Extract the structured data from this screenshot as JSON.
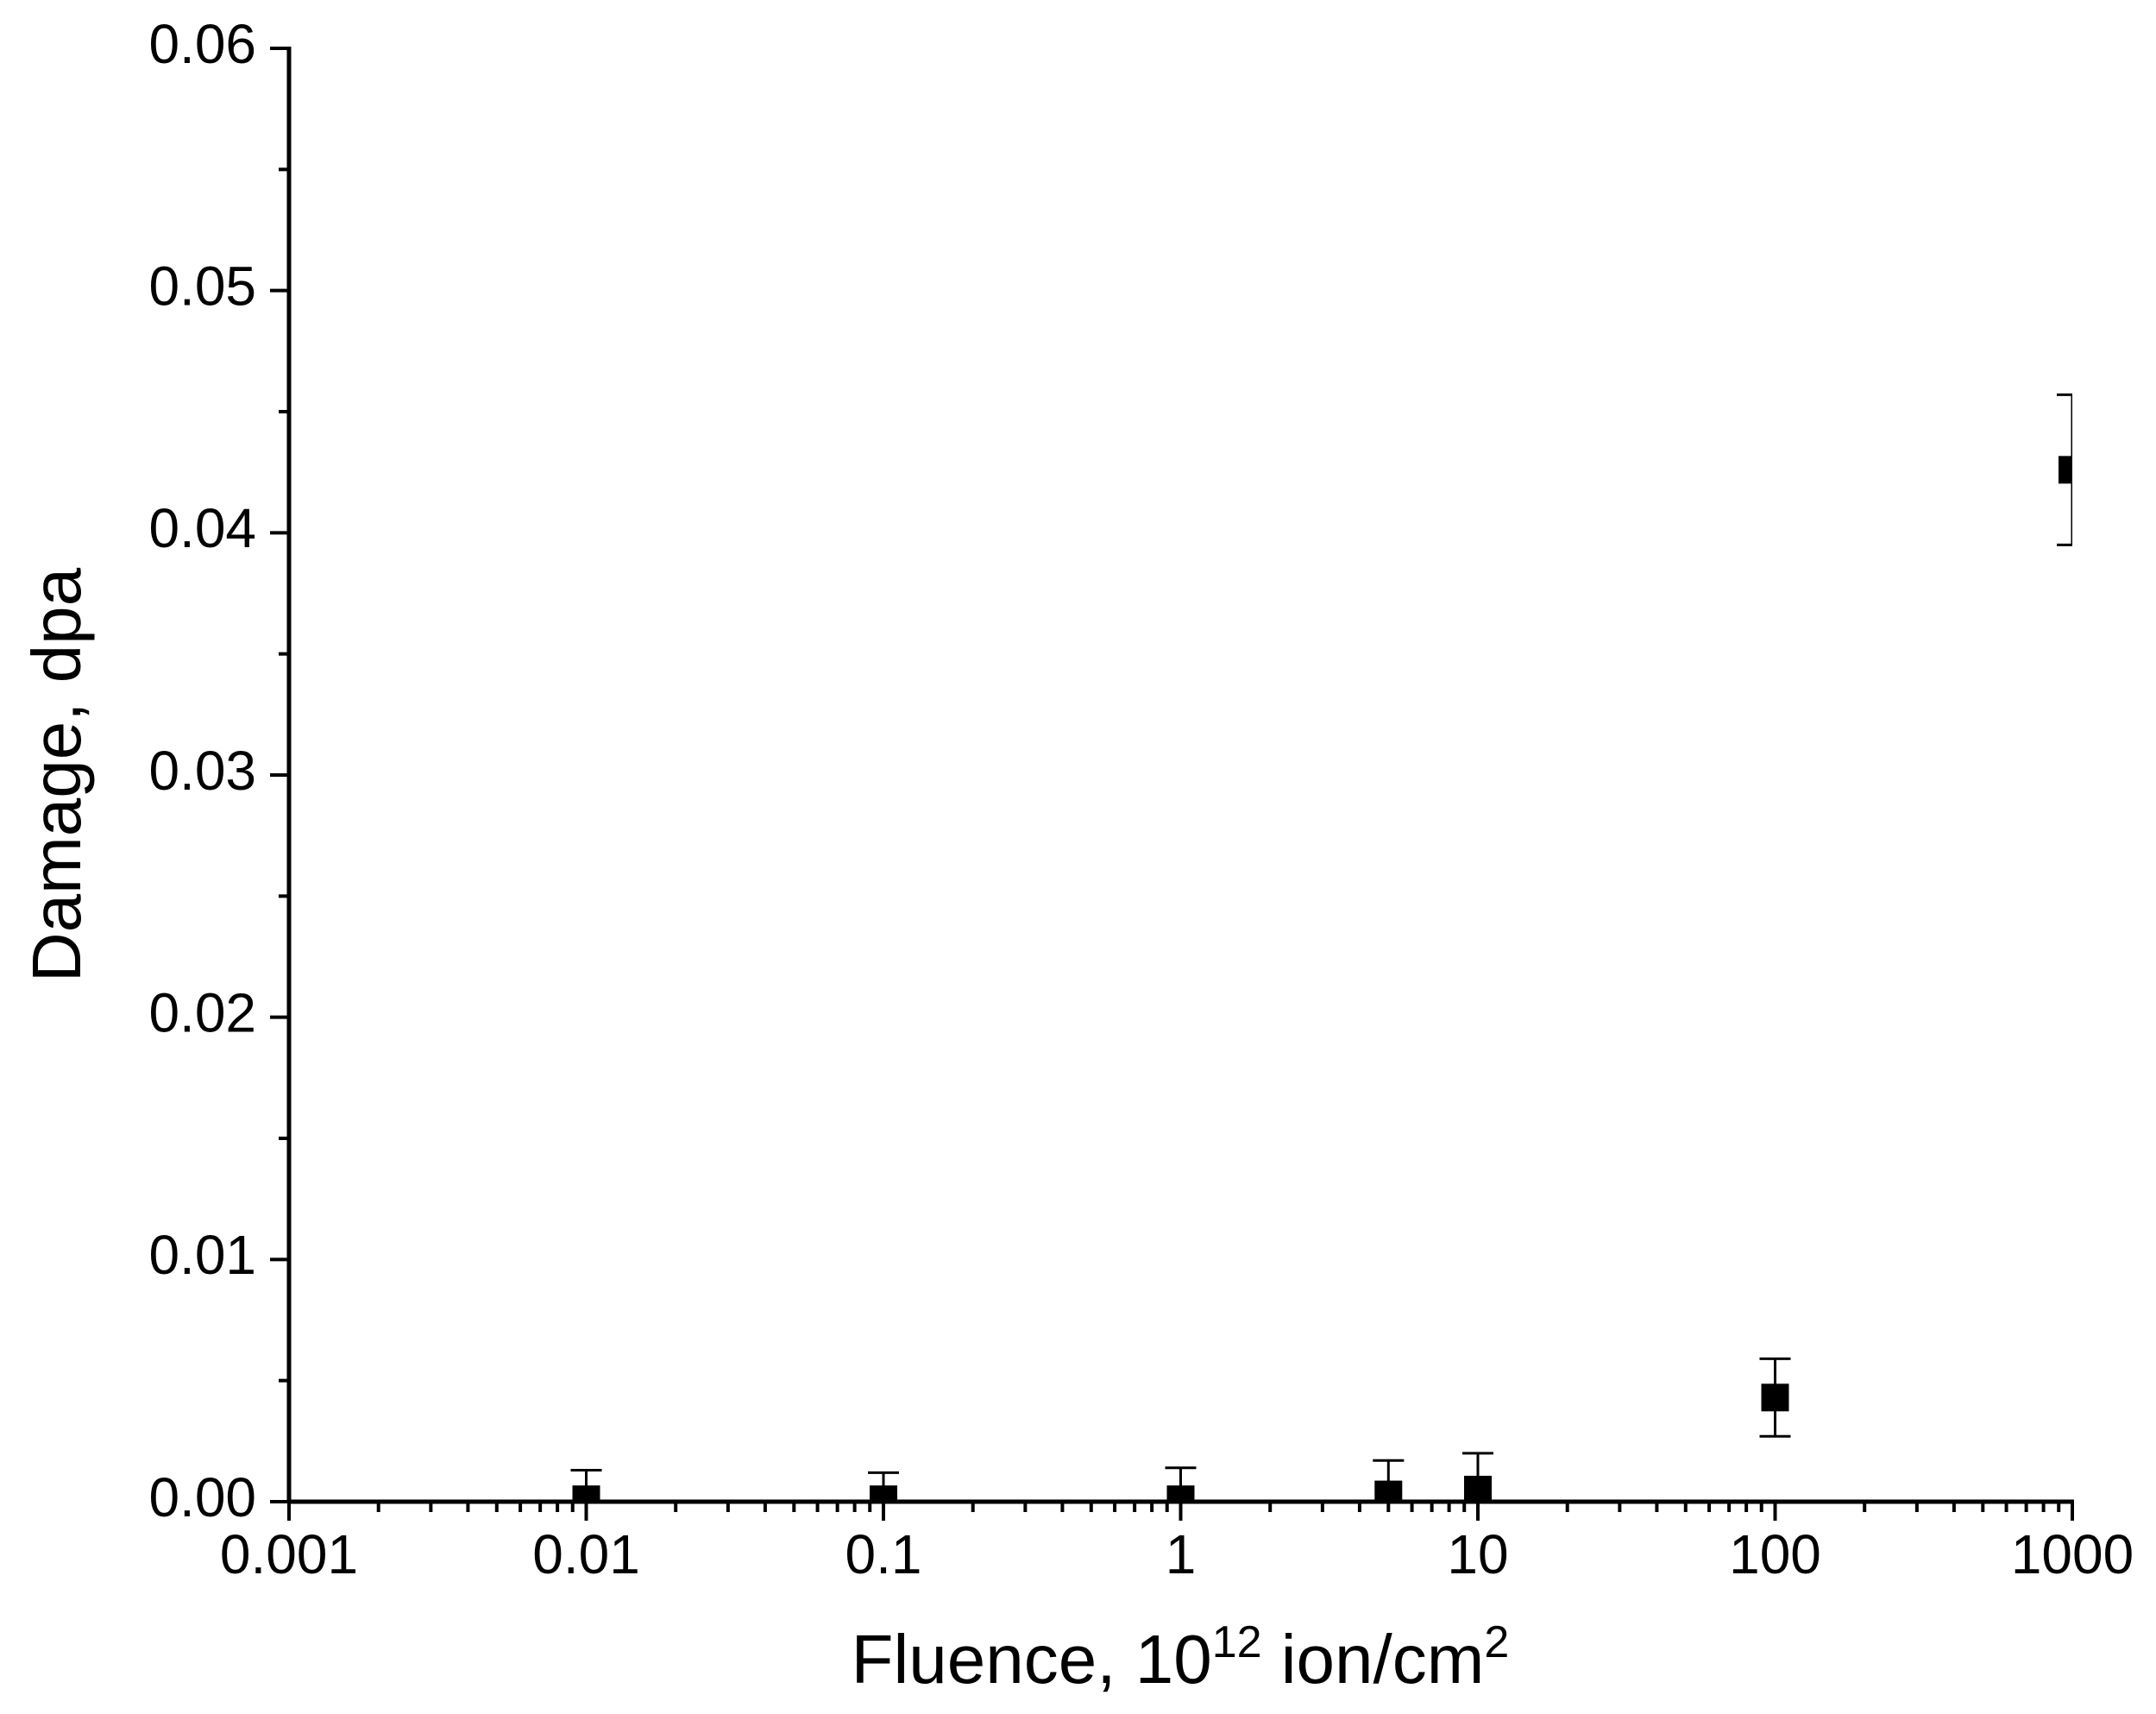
{
  "chart_data": {
    "type": "scatter",
    "xlabel": [
      "Fluence, 10",
      "12",
      " ion/cm",
      "2"
    ],
    "ylabel": "Damage, dpa",
    "x": [
      0.01,
      0.1,
      1,
      5,
      10,
      100,
      1000
    ],
    "values": [
      0.0001,
      0.0001,
      0.0001,
      0.0003,
      0.0005,
      0.0043,
      0.0426
    ],
    "errors": [
      0.0012,
      0.0011,
      0.0013,
      0.0014,
      0.0015,
      0.0016,
      0.0031
    ],
    "color": "#000000",
    "xscale": "log",
    "xlim": [
      0.001,
      1000
    ],
    "xticks": [
      0.001,
      0.01,
      0.1,
      1,
      10,
      100,
      1000
    ],
    "xminor_ticks": [
      0.002,
      0.003,
      0.004,
      0.005,
      0.006,
      0.007,
      0.008,
      0.009,
      0.02,
      0.03,
      0.04,
      0.05,
      0.06,
      0.07,
      0.08,
      0.09,
      0.2,
      0.3,
      0.4,
      0.5,
      0.6,
      0.7,
      0.8,
      0.9,
      2,
      3,
      4,
      5,
      6,
      7,
      8,
      9,
      20,
      30,
      40,
      50,
      60,
      70,
      80,
      90,
      200,
      300,
      400,
      500,
      600,
      700,
      800,
      900
    ],
    "ylim": [
      0,
      0.06
    ],
    "yticks": [
      {
        "value": 0,
        "label": "0.00"
      },
      0.01,
      0.02,
      0.03,
      0.04,
      0.05,
      0.06
    ],
    "yminor_ticks": [
      0.005,
      0.015,
      0.025,
      0.035,
      0.045,
      0.055
    ],
    "grid": false
  }
}
